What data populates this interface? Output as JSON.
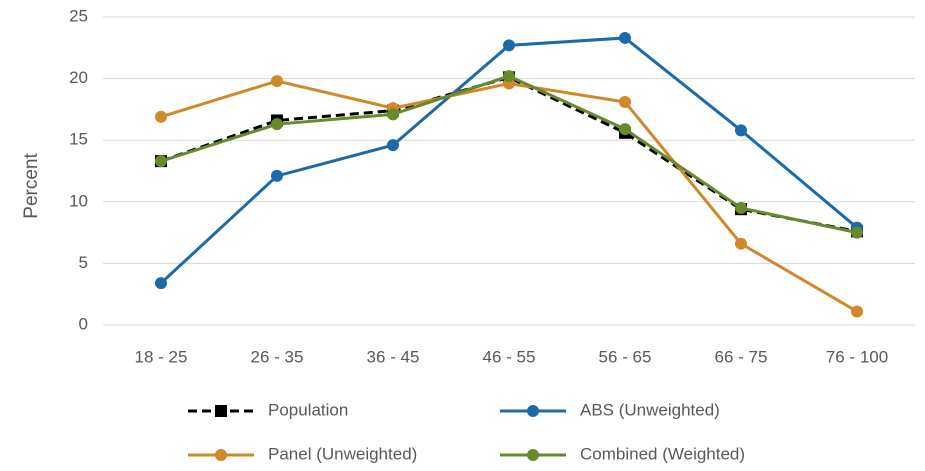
{
  "chart_data": {
    "type": "line",
    "y_label": "Percent",
    "categories": [
      "18 - 25",
      "26 - 35",
      "36 - 45",
      "46 - 55",
      "56 - 65",
      "66 - 75",
      "76 - 100"
    ],
    "series": [
      {
        "name": "Population",
        "color": "#000000",
        "dashed": true,
        "marker": "square",
        "values": [
          13.3,
          16.6,
          17.4,
          20.1,
          15.6,
          9.4,
          7.6
        ]
      },
      {
        "name": "ABS (Unweighted)",
        "color": "#1c6aa8",
        "dashed": false,
        "marker": "circle",
        "values": [
          3.4,
          12.1,
          14.6,
          22.7,
          23.3,
          15.8,
          7.9
        ]
      },
      {
        "name": "Panel (Unweighted)",
        "color": "#d0882a",
        "dashed": false,
        "marker": "circle",
        "values": [
          16.9,
          19.8,
          17.6,
          19.6,
          18.1,
          6.6,
          1.1
        ]
      },
      {
        "name": "Combined (Weighted)",
        "color": "#688a2c",
        "dashed": false,
        "marker": "circle",
        "values": [
          13.3,
          16.3,
          17.1,
          20.2,
          15.9,
          9.5,
          7.5
        ]
      }
    ],
    "ylim": [
      0,
      25
    ],
    "yticks": [
      0,
      5,
      10,
      15,
      20,
      25
    ],
    "grid": true,
    "legend": "bottom"
  }
}
